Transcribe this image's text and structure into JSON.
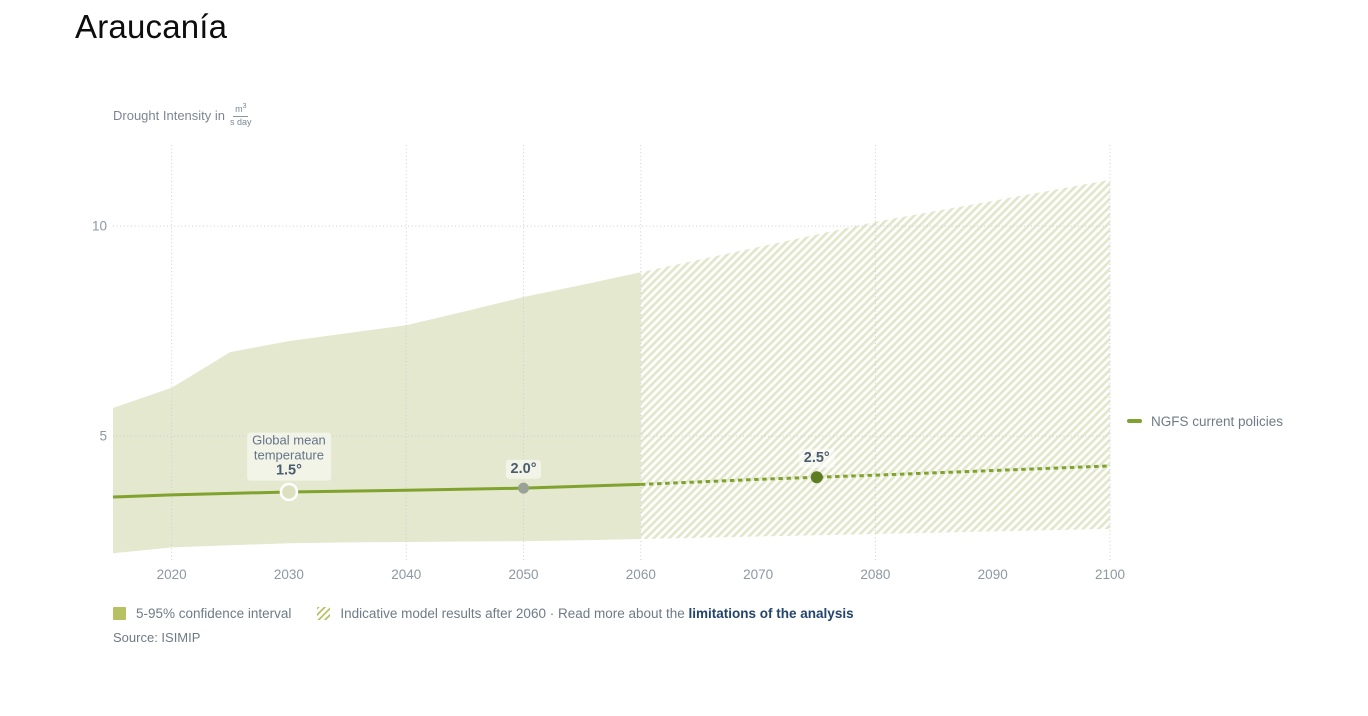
{
  "title": "Araucanía",
  "axis": {
    "label_prefix": "Drought Intensity in",
    "unit_numerator": "m",
    "unit_numerator_exp": "3",
    "unit_denominator": "s day"
  },
  "legend_right": {
    "label": "NGFS current policies"
  },
  "legend_bottom": {
    "confidence_label": "5-95% confidence interval",
    "indicative_prefix": "Indicative model results after 2060 · Read more about the ",
    "link_label": "limitations of the analysis"
  },
  "source": "Source: ISIMIP",
  "colors": {
    "line": "#80a22e",
    "band": "#e4e8ce",
    "hatch_stripe": "#e2e6ca",
    "grid": "#c9ced8",
    "marker_dark": "#5d7d22",
    "marker_gray": "#99a294",
    "marker_halo_fill": "#dbe0bf",
    "marker_halo_ring": "#ffffff",
    "legend_swatch": "#b7c164",
    "tick_text": "#8e97a4"
  },
  "chart_data": {
    "type": "line",
    "title": "Araucanía",
    "xlabel": "",
    "ylabel": "Drought Intensity in m³/(s·day)",
    "xlim": [
      2015,
      2100
    ],
    "ylim": [
      2.05,
      11.93
    ],
    "x_ticks": [
      2020,
      2030,
      2040,
      2050,
      2060,
      2070,
      2080,
      2090,
      2100
    ],
    "y_ticks": [
      5,
      10
    ],
    "x_gridlines": [
      2020,
      2040,
      2050,
      2060,
      2080,
      2100
    ],
    "grid": "dotted",
    "legend_position": "right",
    "series": [
      {
        "name": "NGFS current policies",
        "style": "solid",
        "x": [
          2015,
          2020,
          2030,
          2040,
          2050,
          2060
        ],
        "y": [
          3.55,
          3.6,
          3.67,
          3.71,
          3.76,
          3.85
        ]
      },
      {
        "name": "NGFS current policies (indicative after 2060)",
        "style": "dashed",
        "x": [
          2060,
          2065,
          2070,
          2075,
          2080,
          2090,
          2100
        ],
        "y": [
          3.85,
          3.91,
          3.97,
          4.02,
          4.07,
          4.18,
          4.29
        ]
      }
    ],
    "band": {
      "name": "5-95% confidence interval",
      "solid_until": 2060,
      "hatched_from": 2060,
      "x": [
        2015,
        2020,
        2025,
        2030,
        2035,
        2040,
        2045,
        2050,
        2055,
        2060,
        2065,
        2070,
        2075,
        2080,
        2085,
        2090,
        2095,
        2100
      ],
      "top": [
        5.67,
        6.15,
        7.0,
        7.26,
        7.45,
        7.64,
        7.97,
        8.31,
        8.6,
        8.9,
        9.2,
        9.5,
        9.8,
        10.1,
        10.35,
        10.6,
        10.85,
        11.1
      ],
      "bottom": [
        2.21,
        2.35,
        2.4,
        2.45,
        2.47,
        2.48,
        2.49,
        2.5,
        2.52,
        2.55,
        2.58,
        2.61,
        2.64,
        2.67,
        2.7,
        2.73,
        2.76,
        2.79
      ]
    },
    "annotations": [
      {
        "year": 2030,
        "y": 3.67,
        "title_lines": [
          "Global mean",
          "temperature"
        ],
        "label": "1.5°",
        "marker": "halo"
      },
      {
        "year": 2050,
        "y": 3.76,
        "title_lines": [],
        "label": "2.0°",
        "marker": "gray-dot"
      },
      {
        "year": 2075,
        "y": 4.02,
        "title_lines": [],
        "label": "2.5°",
        "marker": "green-dot"
      }
    ]
  }
}
